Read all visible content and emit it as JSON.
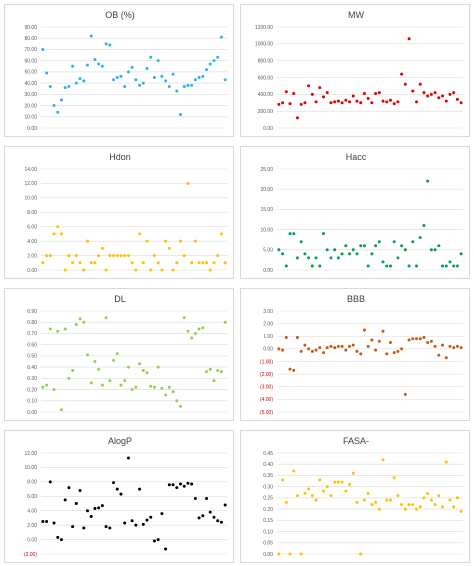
{
  "chart_data": [
    {
      "type": "scatter",
      "title": "OB (%)",
      "color": "#2ab4e8",
      "ylim": [
        0,
        90
      ],
      "yticks": [
        0,
        10,
        20,
        30,
        40,
        50,
        60,
        70,
        80,
        90
      ],
      "yticklabels": [
        "0.00",
        "10.00",
        "20.00",
        "30.00",
        "40.00",
        "50.00",
        "60.00",
        "70.00",
        "80.00",
        "90.00"
      ],
      "x": [
        1,
        2,
        3,
        4,
        5,
        6,
        7,
        8,
        9,
        10,
        11,
        12,
        13,
        14,
        15,
        16,
        17,
        18,
        19,
        20,
        21,
        22,
        23,
        24,
        25,
        26,
        27,
        28,
        29,
        30,
        31,
        32,
        33,
        34,
        35,
        36,
        37,
        38,
        39,
        40,
        41,
        42,
        43,
        44,
        45,
        46,
        47,
        48,
        49,
        50
      ],
      "y": [
        70,
        49,
        37,
        20,
        14,
        25,
        36,
        37,
        55,
        40,
        44,
        42,
        56,
        82,
        61,
        57,
        55,
        75,
        74,
        43,
        45,
        46,
        37,
        50,
        54,
        43,
        38,
        40,
        53,
        63,
        45,
        60,
        46,
        42,
        37,
        48,
        33,
        12,
        37,
        38,
        38,
        43,
        45,
        46,
        52,
        57,
        60,
        63,
        81,
        43
      ]
    },
    {
      "type": "scatter",
      "title": "MW",
      "color": "#e00000",
      "ylim": [
        0,
        1200
      ],
      "yticks": [
        0,
        200,
        400,
        600,
        800,
        1000,
        1200
      ],
      "yticklabels": [
        "0.00",
        "200.00",
        "400.00",
        "600.00",
        "800.00",
        "1000.00",
        "1200.00"
      ],
      "x": [
        1,
        2,
        3,
        4,
        5,
        6,
        7,
        8,
        9,
        10,
        11,
        12,
        13,
        14,
        15,
        16,
        17,
        18,
        19,
        20,
        21,
        22,
        23,
        24,
        25,
        26,
        27,
        28,
        29,
        30,
        31,
        32,
        33,
        34,
        35,
        36,
        37,
        38,
        39,
        40,
        41,
        42,
        43,
        44,
        45,
        46,
        47,
        48,
        49,
        50
      ],
      "y": [
        280,
        300,
        430,
        290,
        410,
        120,
        280,
        300,
        500,
        400,
        310,
        480,
        370,
        420,
        300,
        310,
        320,
        300,
        330,
        310,
        380,
        320,
        300,
        410,
        350,
        300,
        410,
        420,
        320,
        310,
        330,
        290,
        310,
        640,
        520,
        1060,
        440,
        310,
        520,
        420,
        380,
        400,
        420,
        360,
        380,
        320,
        400,
        420,
        340,
        300
      ]
    },
    {
      "type": "scatter",
      "title": "Hdon",
      "color": "#ffc000",
      "ylim": [
        0,
        14
      ],
      "yticks": [
        0,
        2,
        4,
        6,
        8,
        10,
        12,
        14
      ],
      "yticklabels": [
        "0.00",
        "2.00",
        "4.00",
        "6.00",
        "8.00",
        "10.00",
        "12.00",
        "14.00"
      ],
      "x": [
        1,
        2,
        3,
        4,
        5,
        6,
        7,
        8,
        9,
        10,
        11,
        12,
        13,
        14,
        15,
        16,
        17,
        18,
        19,
        20,
        21,
        22,
        23,
        24,
        25,
        26,
        27,
        28,
        29,
        30,
        31,
        32,
        33,
        34,
        35,
        36,
        37,
        38,
        39,
        40,
        41,
        42,
        43,
        44,
        45,
        46,
        47,
        48,
        49,
        50
      ],
      "y": [
        1,
        2,
        2,
        5,
        6,
        5,
        0,
        2,
        1,
        2,
        1,
        0,
        4,
        1,
        1,
        2,
        3,
        0,
        2,
        2,
        2,
        2,
        2,
        2,
        1,
        0,
        5,
        1,
        4,
        0,
        2,
        1,
        0,
        4,
        3,
        0,
        1,
        4,
        2,
        12,
        1,
        4,
        1,
        1,
        1,
        0,
        1,
        2,
        5,
        1
      ]
    },
    {
      "type": "scatter",
      "title": "Hacc",
      "color": "#00a050",
      "ylim": [
        0,
        25
      ],
      "yticks": [
        0,
        5,
        10,
        15,
        20,
        25
      ],
      "yticklabels": [
        "0.00",
        "5.00",
        "10.00",
        "15.00",
        "20.00",
        "25.00"
      ],
      "x": [
        1,
        2,
        3,
        4,
        5,
        6,
        7,
        8,
        9,
        10,
        11,
        12,
        13,
        14,
        15,
        16,
        17,
        18,
        19,
        20,
        21,
        22,
        23,
        24,
        25,
        26,
        27,
        28,
        29,
        30,
        31,
        32,
        33,
        34,
        35,
        36,
        37,
        38,
        39,
        40,
        41,
        42,
        43,
        44,
        45,
        46,
        47,
        48,
        49,
        50
      ],
      "y": [
        5,
        4,
        1,
        9,
        9,
        3,
        7,
        4,
        3,
        1,
        3,
        1,
        9,
        5,
        3,
        5,
        3,
        4,
        6,
        4,
        5,
        4,
        6,
        6,
        1,
        4,
        6,
        7,
        2,
        1,
        1,
        7,
        3,
        6,
        5,
        1,
        7,
        1,
        8,
        11,
        22,
        5,
        5,
        6,
        1,
        1,
        2,
        1,
        1,
        4
      ]
    },
    {
      "type": "scatter",
      "title": "DL",
      "color": "#92d050",
      "ylim": [
        0,
        0.9
      ],
      "yticks": [
        0,
        0.1,
        0.2,
        0.3,
        0.4,
        0.5,
        0.6,
        0.7,
        0.8,
        0.9
      ],
      "yticklabels": [
        "0.00",
        "0.10",
        "0.20",
        "0.30",
        "0.40",
        "0.50",
        "0.60",
        "0.70",
        "0.80",
        "0.90"
      ],
      "x": [
        1,
        2,
        3,
        4,
        5,
        6,
        7,
        8,
        9,
        10,
        11,
        12,
        13,
        14,
        15,
        16,
        17,
        18,
        19,
        20,
        21,
        22,
        23,
        24,
        25,
        26,
        27,
        28,
        29,
        30,
        31,
        32,
        33,
        34,
        35,
        36,
        37,
        38,
        39,
        40,
        41,
        42,
        43,
        44,
        45,
        46,
        47,
        48,
        49,
        50
      ],
      "y": [
        0.22,
        0.24,
        0.74,
        0.2,
        0.72,
        0.02,
        0.74,
        0.3,
        0.37,
        0.78,
        0.83,
        0.8,
        0.51,
        0.26,
        0.45,
        0.38,
        0.24,
        0.84,
        0.28,
        0.46,
        0.52,
        0.24,
        0.28,
        0.4,
        0.2,
        0.22,
        0.43,
        0.37,
        0.35,
        0.23,
        0.22,
        0.4,
        0.21,
        0.15,
        0.22,
        0.18,
        0.1,
        0.05,
        0.84,
        0.72,
        0.66,
        0.7,
        0.74,
        0.75,
        0.36,
        0.38,
        0.28,
        0.37,
        0.36,
        0.8
      ]
    },
    {
      "type": "scatter",
      "title": "BBB",
      "color": "#c55a11",
      "ylim": [
        -5,
        3
      ],
      "yticks": [
        -5,
        -4,
        -3,
        -2,
        -1,
        0,
        1,
        2,
        3
      ],
      "yticklabels": [
        "(5.00)",
        "(4.00)",
        "(3.00)",
        "(2.00)",
        "(1.00)",
        "0.00",
        "1.00",
        "2.00",
        "3.00"
      ],
      "x": [
        1,
        2,
        3,
        4,
        5,
        6,
        7,
        8,
        9,
        10,
        11,
        12,
        13,
        14,
        15,
        16,
        17,
        18,
        19,
        20,
        21,
        22,
        23,
        24,
        25,
        26,
        27,
        28,
        29,
        30,
        31,
        32,
        33,
        34,
        35,
        36,
        37,
        38,
        39,
        40,
        41,
        42,
        43,
        44,
        45,
        46,
        47,
        48,
        49,
        50
      ],
      "y": [
        0,
        -0.1,
        0.9,
        -1.6,
        -1.7,
        0.9,
        -0.2,
        0.3,
        0,
        -0.2,
        -0.1,
        0.1,
        -0.3,
        0.1,
        0.2,
        0.1,
        0.2,
        0.2,
        -0.1,
        0.2,
        0.3,
        -0.2,
        -0.4,
        1.5,
        0.2,
        0.7,
        -0.1,
        0.6,
        1.4,
        -0.4,
        0.5,
        -0.3,
        -0.2,
        0,
        -3.6,
        0.7,
        0.8,
        0.8,
        0.8,
        0.9,
        0.5,
        0.6,
        0.2,
        -0.5,
        0.3,
        -0.7,
        0.2,
        0.1,
        0.2,
        0.1
      ]
    },
    {
      "type": "scatter",
      "title": "AlogP",
      "color": "#000000",
      "ylim": [
        -2,
        12
      ],
      "yticks": [
        -2,
        0,
        2,
        4,
        6,
        8,
        10,
        12
      ],
      "yticklabels": [
        "(2.00)",
        "0.00",
        "2.00",
        "4.00",
        "6.00",
        "8.00",
        "10.00",
        "12.00"
      ],
      "x": [
        1,
        2,
        3,
        4,
        5,
        6,
        7,
        8,
        9,
        10,
        11,
        12,
        13,
        14,
        15,
        16,
        17,
        18,
        19,
        20,
        21,
        22,
        23,
        24,
        25,
        26,
        27,
        28,
        29,
        30,
        31,
        32,
        33,
        34,
        35,
        36,
        37,
        38,
        39,
        40,
        41,
        42,
        43,
        44,
        45,
        46,
        47,
        48,
        49,
        50
      ],
      "y": [
        2.5,
        2.5,
        8,
        2.3,
        0.3,
        0,
        5.5,
        7.2,
        1.8,
        5,
        6.8,
        1.6,
        4,
        3.2,
        4.3,
        4.4,
        4.7,
        1.8,
        1.6,
        7.9,
        7,
        6.3,
        2.3,
        11.3,
        2.6,
        2,
        7,
        2.1,
        2.7,
        3.1,
        -0.2,
        0,
        3.6,
        -1.3,
        7.6,
        7.6,
        7.2,
        7.7,
        7.4,
        7.8,
        7.7,
        5.7,
        3,
        3.3,
        5.7,
        3.8,
        3.1,
        2.6,
        2.4,
        4.8
      ]
    },
    {
      "type": "scatter",
      "title": "FASA-",
      "color": "#ffc000",
      "ylim": [
        0,
        0.45
      ],
      "yticks": [
        0,
        0.05,
        0.1,
        0.15,
        0.2,
        0.25,
        0.3,
        0.35,
        0.4,
        0.45
      ],
      "yticklabels": [
        "0.00",
        "0.05",
        "0.10",
        "0.15",
        "0.20",
        "0.25",
        "0.30",
        "0.35",
        "0.40",
        "0.45"
      ],
      "x": [
        1,
        2,
        3,
        4,
        5,
        6,
        7,
        8,
        9,
        10,
        11,
        12,
        13,
        14,
        15,
        16,
        17,
        18,
        19,
        20,
        21,
        22,
        23,
        24,
        25,
        26,
        27,
        28,
        29,
        30,
        31,
        32,
        33,
        34,
        35,
        36,
        37,
        38,
        39,
        40,
        41,
        42,
        43,
        44,
        45,
        46,
        47,
        48,
        49,
        50
      ],
      "y": [
        0,
        0.33,
        0.23,
        0,
        0.37,
        0.26,
        0,
        0.27,
        0.29,
        0.26,
        0.24,
        0.33,
        0.28,
        0.3,
        0.26,
        0.32,
        0.32,
        0.32,
        0.28,
        0.31,
        0.36,
        0.23,
        0,
        0.24,
        0.27,
        0.22,
        0.23,
        0.2,
        0.42,
        0.24,
        0.24,
        0.34,
        0.26,
        0.22,
        0.2,
        0.22,
        0.22,
        0.2,
        0.21,
        0.25,
        0.27,
        0.24,
        0.22,
        0.26,
        0.21,
        0.41,
        0.24,
        0.21,
        0.25,
        0.19
      ]
    }
  ]
}
